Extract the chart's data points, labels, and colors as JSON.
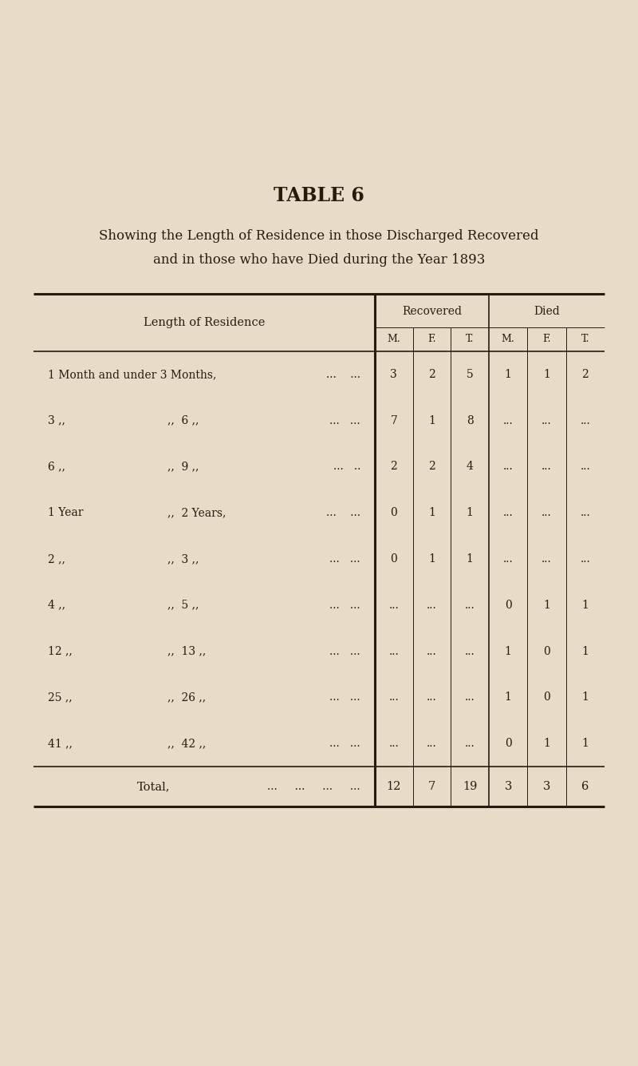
{
  "title": "TABLE 6",
  "subtitle_line1": "Showing the Length of Residence in those Discharged Recovered",
  "subtitle_line2": "and in those who have Died during the Year 1893",
  "bg_color": "#e8dcc8",
  "page_bg": "#d4c9a8",
  "text_color": "#2a1a0e",
  "col_header_row1": [
    "Recovered",
    "Died"
  ],
  "col_header_row2": [
    "M.",
    "F.",
    "T.",
    "M.",
    "F.",
    "T."
  ],
  "row_label_col": "Length of Residence",
  "rows": [
    {
      "label_left": "1 Month and under 3 Months,",
      "label_right": "...    ...",
      "rec_m": "3",
      "rec_f": "2",
      "rec_t": "5",
      "died_m": "1",
      "died_f": "1",
      "died_t": "2"
    },
    {
      "label_left": "3 ,,            ,, 6 ,,",
      "label_right": "...   ...",
      "rec_m": "7",
      "rec_f": "1",
      "rec_t": "8",
      "died_m": "...",
      "died_f": "...",
      "died_t": "..."
    },
    {
      "label_left": "6 ,,            ,, 9 ,,",
      "label_right": "...   ..",
      "rec_m": "2",
      "rec_f": "2",
      "rec_t": "4",
      "died_m": "...",
      "died_f": "...",
      "died_t": "..."
    },
    {
      "label_left": "1 Year      ,, 2 Years,",
      "label_right": "...    ...",
      "rec_m": "0",
      "rec_f": "1",
      "rec_t": "1",
      "died_m": "...",
      "died_f": "...",
      "died_t": "..."
    },
    {
      "label_left": "2 ,,            ,, 3 ,,",
      "label_right": "...   ...",
      "rec_m": "0",
      "rec_f": "1",
      "rec_t": "1",
      "died_m": "...",
      "died_f": "...",
      "died_t": "..."
    },
    {
      "label_left": "4 ,,            ,, 5 ,,",
      "label_right": "...   ...",
      "rec_m": "...",
      "rec_f": "...",
      "rec_t": "...",
      "died_m": "0",
      "died_f": "1",
      "died_t": "1"
    },
    {
      "label_left": "12 ,,          ,, 13 ,,",
      "label_right": "...   ...",
      "rec_m": "...",
      "rec_f": "...",
      "rec_t": "...",
      "died_m": "1",
      "died_f": "0",
      "died_t": "1"
    },
    {
      "label_left": "25 ,,          ,, 26 ,,",
      "label_right": "...   ...",
      "rec_m": "...",
      "rec_f": "...",
      "rec_t": "...",
      "died_m": "1",
      "died_f": "0",
      "died_t": "1"
    },
    {
      "label_left": "41 ,,          ,, 42 ,,",
      "label_right": "...   ...",
      "rec_m": "...",
      "rec_f": "...",
      "rec_t": "...",
      "died_m": "0",
      "died_f": "1",
      "died_t": "1"
    }
  ],
  "total_label": "Total,",
  "total_dots": "...     ...     ...     ...",
  "total_rec_m": "12",
  "total_rec_f": "7",
  "total_rec_t": "19",
  "total_died_m": "3",
  "total_died_f": "3",
  "total_died_t": "6"
}
